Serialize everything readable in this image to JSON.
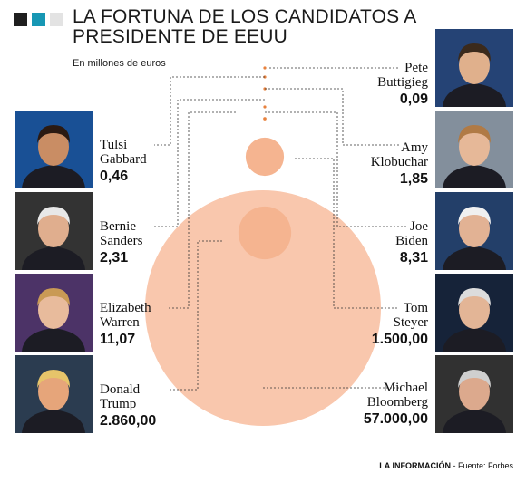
{
  "title": "LA FORTUNA DE LOS CANDIDATOS A PRESIDENTE DE EEUU",
  "subtitle": "En millones de euros",
  "source": {
    "brand": "LA INFORMACIÓN",
    "credit": " - Fuente: Forbes"
  },
  "colors": {
    "bubble": "#f9c7ad",
    "bubble_inner": "#f5b490",
    "dot": "#e8823e",
    "square_dark": "#1f1f1f",
    "square_teal": "#1797b4",
    "square_light": "#e3e3e3"
  },
  "chart_data": {
    "type": "bubble",
    "unit": "millones de euros",
    "title": "LA FORTUNA DE LOS CANDIDATOS A PRESIDENTE DE EEUU",
    "subtitle": "En millones de euros",
    "candidates": [
      {
        "first": "Pete",
        "last": "Buttigieg",
        "value": 0.09,
        "value_label": "0,09",
        "side": "right"
      },
      {
        "first": "Tulsi",
        "last": "Gabbard",
        "value": 0.46,
        "value_label": "0,46",
        "side": "left"
      },
      {
        "first": "Amy",
        "last": "Klobuchar",
        "value": 1.85,
        "value_label": "1,85",
        "side": "right"
      },
      {
        "first": "Bernie",
        "last": "Sanders",
        "value": 2.31,
        "value_label": "2,31",
        "side": "left"
      },
      {
        "first": "Joe",
        "last": "Biden",
        "value": 8.31,
        "value_label": "8,31",
        "side": "right"
      },
      {
        "first": "Elizabeth",
        "last": "Warren",
        "value": 11.07,
        "value_label": "11,07",
        "side": "left"
      },
      {
        "first": "Tom",
        "last": "Steyer",
        "value": 1500,
        "value_label": "1.500,00",
        "side": "right"
      },
      {
        "first": "Donald",
        "last": "Trump",
        "value": 2860,
        "value_label": "2.860,00",
        "side": "left"
      },
      {
        "first": "Michael",
        "last": "Bloomberg",
        "value": 57000,
        "value_label": "57.000,00",
        "side": "right"
      }
    ]
  }
}
